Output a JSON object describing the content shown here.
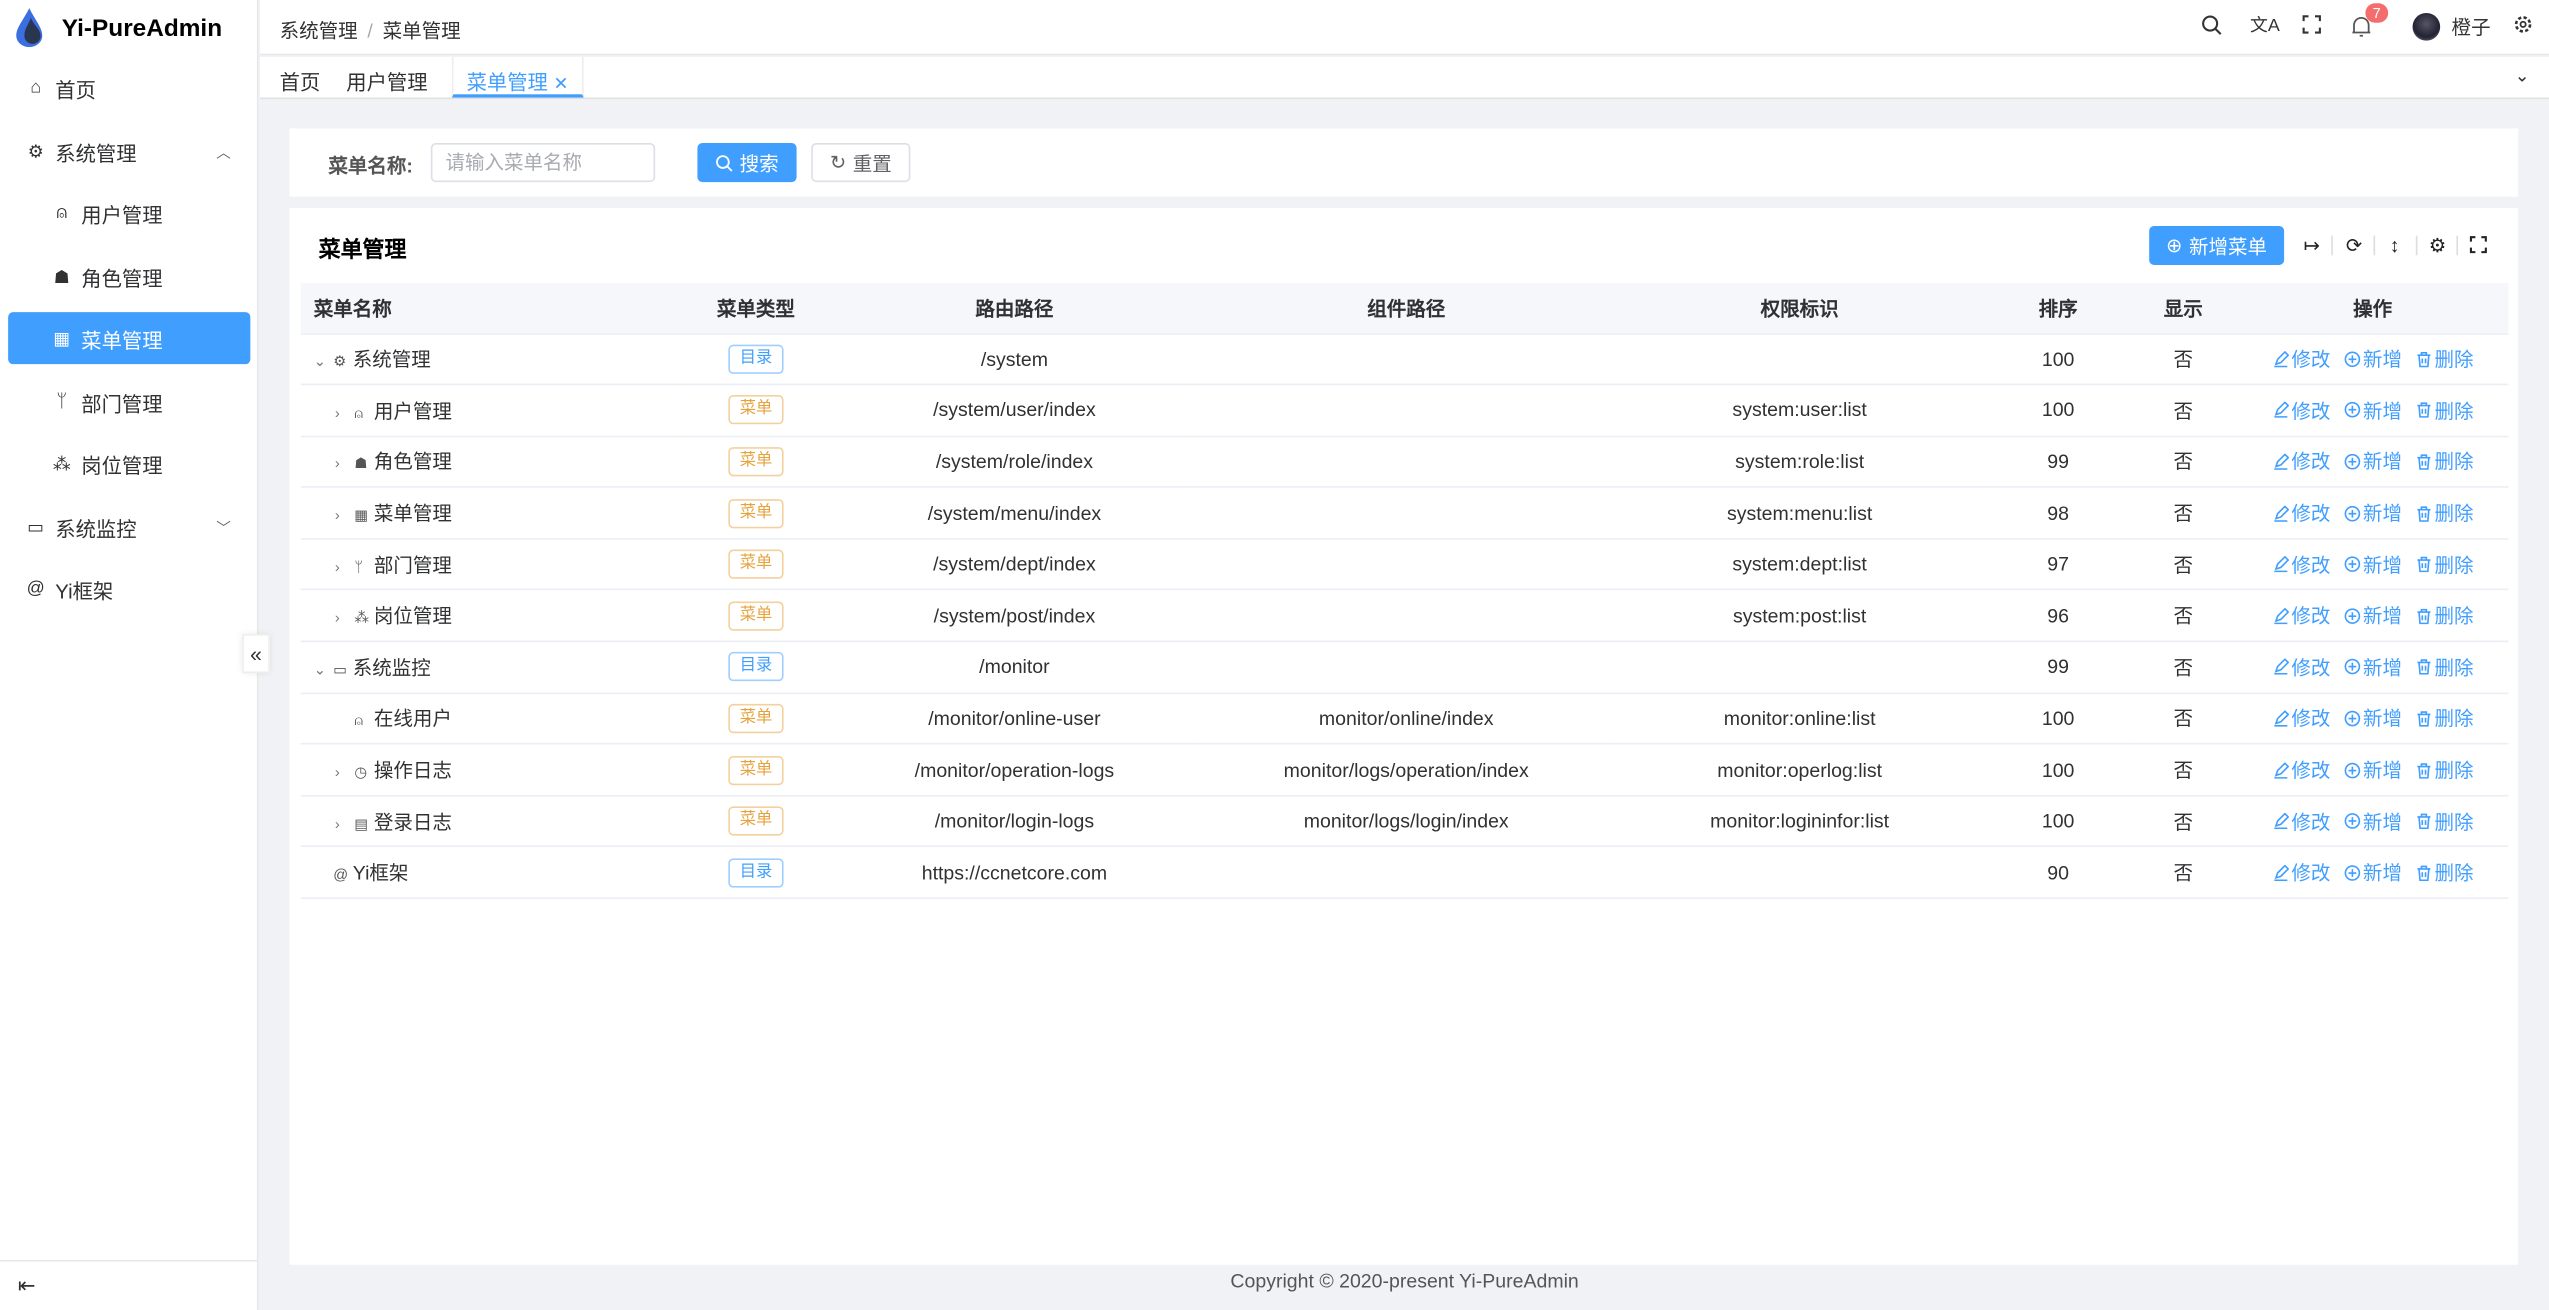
{
  "app": {
    "title": "Yi-PureAdmin",
    "accent": "#409eff"
  },
  "sidebar": {
    "items": [
      {
        "label": "首页",
        "icon": "home-icon"
      },
      {
        "label": "系统管理",
        "icon": "gear-icon",
        "expanded": true
      },
      {
        "label": "用户管理",
        "icon": "user-icon"
      },
      {
        "label": "角色管理",
        "icon": "role-icon"
      },
      {
        "label": "菜单管理",
        "icon": "grid-icon",
        "active": true
      },
      {
        "label": "部门管理",
        "icon": "branch-icon"
      },
      {
        "label": "岗位管理",
        "icon": "org-icon"
      },
      {
        "label": "系统监控",
        "icon": "monitor-icon",
        "expanded": false
      },
      {
        "label": "Yi框架",
        "icon": "at-icon"
      }
    ]
  },
  "header": {
    "breadcrumb": [
      "系统管理",
      "菜单管理"
    ],
    "notifications": "7",
    "username": "橙子"
  },
  "tabs": [
    {
      "label": "首页"
    },
    {
      "label": "用户管理"
    },
    {
      "label": "菜单管理",
      "active": true
    }
  ],
  "search": {
    "label": "菜单名称:",
    "placeholder": "请输入菜单名称",
    "value": "",
    "search_label": "搜索",
    "reset_label": "重置"
  },
  "table": {
    "title": "菜单管理",
    "add_label": "新增菜单",
    "columns": [
      "菜单名称",
      "菜单类型",
      "路由路径",
      "组件路径",
      "权限标识",
      "排序",
      "显示",
      "操作"
    ],
    "actions": [
      "修改",
      "新增",
      "删除"
    ],
    "rows": [
      {
        "name": "系统管理",
        "level": 0,
        "expander": "down",
        "icon": "⚙",
        "type": "目录",
        "kind": "dir",
        "route": "/system",
        "component": "",
        "perm": "",
        "sort": "100",
        "show": "否"
      },
      {
        "name": "用户管理",
        "level": 1,
        "expander": "right",
        "icon": "⍝",
        "type": "菜单",
        "kind": "menu",
        "route": "/system/user/index",
        "component": "",
        "perm": "system:user:list",
        "sort": "100",
        "show": "否"
      },
      {
        "name": "角色管理",
        "level": 1,
        "expander": "right",
        "icon": "☗",
        "type": "菜单",
        "kind": "menu",
        "route": "/system/role/index",
        "component": "",
        "perm": "system:role:list",
        "sort": "99",
        "show": "否"
      },
      {
        "name": "菜单管理",
        "level": 1,
        "expander": "right",
        "icon": "▦",
        "type": "菜单",
        "kind": "menu",
        "route": "/system/menu/index",
        "component": "",
        "perm": "system:menu:list",
        "sort": "98",
        "show": "否"
      },
      {
        "name": "部门管理",
        "level": 1,
        "expander": "right",
        "icon": "ᛘ",
        "type": "菜单",
        "kind": "menu",
        "route": "/system/dept/index",
        "component": "",
        "perm": "system:dept:list",
        "sort": "97",
        "show": "否"
      },
      {
        "name": "岗位管理",
        "level": 1,
        "expander": "right",
        "icon": "⁂",
        "type": "菜单",
        "kind": "menu",
        "route": "/system/post/index",
        "component": "",
        "perm": "system:post:list",
        "sort": "96",
        "show": "否"
      },
      {
        "name": "系统监控",
        "level": 0,
        "expander": "down",
        "icon": "▭",
        "type": "目录",
        "kind": "dir",
        "route": "/monitor",
        "component": "",
        "perm": "",
        "sort": "99",
        "show": "否"
      },
      {
        "name": "在线用户",
        "level": 1,
        "expander": "",
        "icon": "⍝",
        "type": "菜单",
        "kind": "menu",
        "route": "/monitor/online-user",
        "component": "monitor/online/index",
        "perm": "monitor:online:list",
        "sort": "100",
        "show": "否"
      },
      {
        "name": "操作日志",
        "level": 1,
        "expander": "right",
        "icon": "◷",
        "type": "菜单",
        "kind": "menu",
        "route": "/monitor/operation-logs",
        "component": "monitor/logs/operation/index",
        "perm": "monitor:operlog:list",
        "sort": "100",
        "show": "否"
      },
      {
        "name": "登录日志",
        "level": 1,
        "expander": "right",
        "icon": "▤",
        "type": "菜单",
        "kind": "menu",
        "route": "/monitor/login-logs",
        "component": "monitor/logs/login/index",
        "perm": "monitor:logininfor:list",
        "sort": "100",
        "show": "否"
      },
      {
        "name": "Yi框架",
        "level": 0,
        "expander": "",
        "icon": "@",
        "type": "目录",
        "kind": "dir",
        "route": "https://ccnetcore.com",
        "component": "",
        "perm": "",
        "sort": "90",
        "show": "否"
      }
    ]
  },
  "footer": "Copyright © 2020-present Yi-PureAdmin"
}
